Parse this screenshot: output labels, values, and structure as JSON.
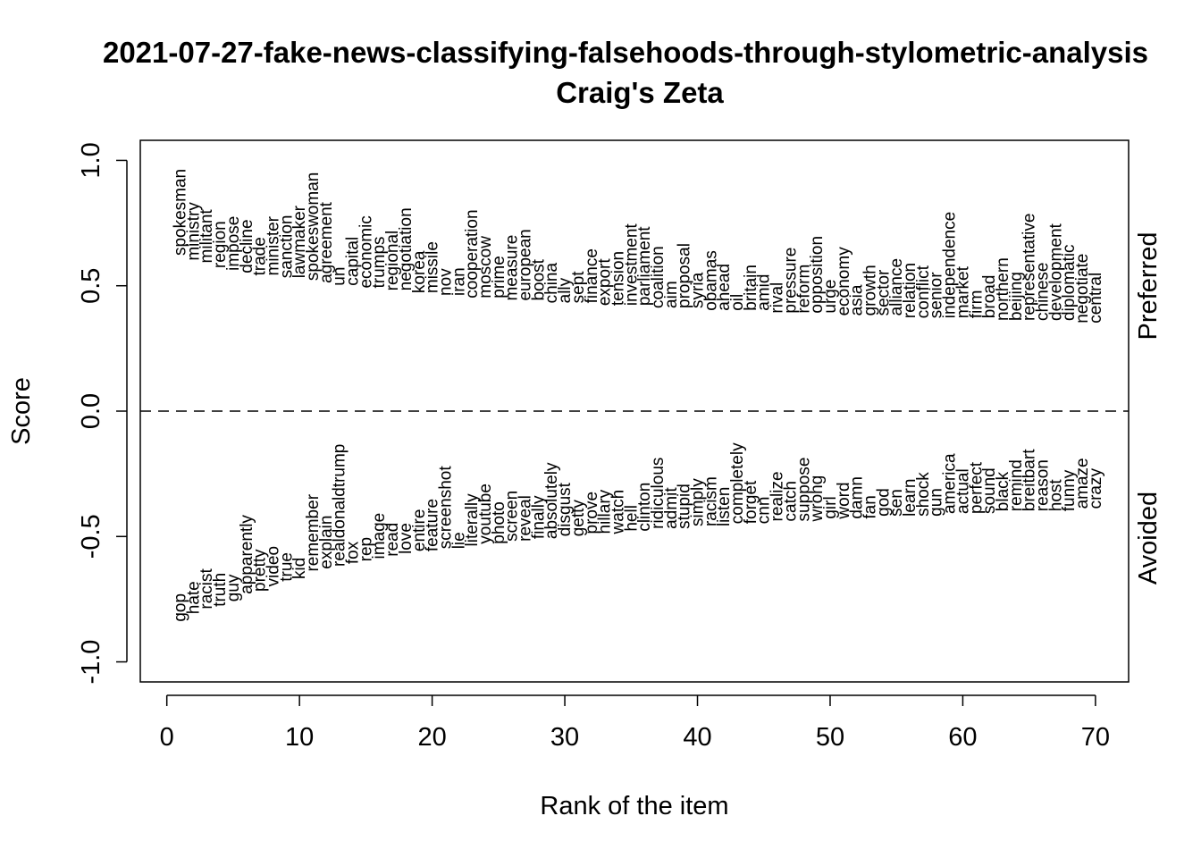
{
  "chart_data": {
    "type": "scatter",
    "title": "2021-07-27-fake-news-classifying-falsehoods-through-stylometric-analysis",
    "subtitle": "Craig's Zeta",
    "xlabel": "Rank of the item",
    "ylabel": "Score",
    "xlim": [
      -2,
      72.5
    ],
    "ylim": [
      -1.08,
      1.08
    ],
    "x_ticks": [
      "0",
      "10",
      "20",
      "30",
      "40",
      "50",
      "60",
      "70"
    ],
    "y_ticks": [
      "-1.0",
      "-0.5",
      "0.0",
      "0.5",
      "1.0"
    ],
    "reference_line": {
      "y": 0,
      "style": "dashed"
    },
    "side_labels": {
      "top": "Preferred",
      "bottom": "Avoided"
    },
    "preferred": {
      "words": [
        "spokesman",
        "ministry",
        "militant",
        "region",
        "impose",
        "decline",
        "trade",
        "minister",
        "sanction",
        "lawmaker",
        "spokeswoman",
        "agreement",
        "un",
        "capital",
        "economic",
        "trumps",
        "regional",
        "negotiation",
        "korea",
        "missile",
        "nov",
        "iran",
        "cooperation",
        "moscow",
        "prime",
        "measure",
        "european",
        "boost",
        "china",
        "ally",
        "sept",
        "finance",
        "export",
        "tension",
        "investment",
        "parliament",
        "coalition",
        "aim",
        "proposal",
        "syria",
        "obamas",
        "ahead",
        "oil",
        "britain",
        "amid",
        "rival",
        "pressure",
        "reform",
        "opposition",
        "urge",
        "economy",
        "asia",
        "growth",
        "sector",
        "alliance",
        "relation",
        "conflict",
        "senior",
        "independence",
        "market",
        "firm",
        "broad",
        "northern",
        "beijing",
        "representative",
        "chinese",
        "development",
        "diplomatic",
        "negotiate",
        "central"
      ],
      "scores": [
        0.62,
        0.6,
        0.59,
        0.57,
        0.56,
        0.55,
        0.54,
        0.54,
        0.53,
        0.53,
        0.52,
        0.51,
        0.5,
        0.5,
        0.49,
        0.49,
        0.48,
        0.48,
        0.47,
        0.47,
        0.46,
        0.46,
        0.45,
        0.45,
        0.45,
        0.44,
        0.44,
        0.44,
        0.43,
        0.43,
        0.43,
        0.43,
        0.42,
        0.42,
        0.42,
        0.42,
        0.41,
        0.41,
        0.41,
        0.41,
        0.4,
        0.4,
        0.4,
        0.4,
        0.4,
        0.39,
        0.39,
        0.39,
        0.39,
        0.39,
        0.38,
        0.38,
        0.38,
        0.38,
        0.38,
        0.37,
        0.37,
        0.37,
        0.37,
        0.37,
        0.37,
        0.37,
        0.36,
        0.36,
        0.36,
        0.36,
        0.36,
        0.36,
        0.35,
        0.35
      ]
    },
    "avoided": {
      "words": [
        "gop",
        "hate",
        "racist",
        "truth",
        "guy",
        "apparently",
        "pretty",
        "video",
        "true",
        "kid",
        "remember",
        "explain",
        "realdonaldtrump",
        "fox",
        "rep",
        "image",
        "read",
        "love",
        "entire",
        "feature",
        "screenshot",
        "lie",
        "literally",
        "youtube",
        "photo",
        "screen",
        "reveal",
        "finally",
        "absolutely",
        "disgust",
        "getty",
        "prove",
        "hillary",
        "watch",
        "hell",
        "clinton",
        "ridiculous",
        "admit",
        "stupid",
        "simply",
        "racism",
        "listen",
        "completely",
        "forget",
        "cnn",
        "realize",
        "catch",
        "suppose",
        "wrong",
        "girl",
        "word",
        "damn",
        "fan",
        "god",
        "sen",
        "learn",
        "shock",
        "gun",
        "america",
        "actual",
        "perfect",
        "sound",
        "black",
        "remind",
        "breitbart",
        "reason",
        "host",
        "funny",
        "amaze",
        "crazy"
      ],
      "scores": [
        -0.84,
        -0.81,
        -0.79,
        -0.78,
        -0.76,
        -0.73,
        -0.72,
        -0.7,
        -0.68,
        -0.67,
        -0.64,
        -0.63,
        -0.62,
        -0.61,
        -0.6,
        -0.59,
        -0.58,
        -0.57,
        -0.56,
        -0.56,
        -0.55,
        -0.55,
        -0.54,
        -0.53,
        -0.53,
        -0.52,
        -0.52,
        -0.51,
        -0.51,
        -0.5,
        -0.5,
        -0.49,
        -0.49,
        -0.49,
        -0.48,
        -0.48,
        -0.47,
        -0.47,
        -0.47,
        -0.46,
        -0.46,
        -0.46,
        -0.45,
        -0.45,
        -0.45,
        -0.44,
        -0.44,
        -0.44,
        -0.44,
        -0.43,
        -0.43,
        -0.43,
        -0.43,
        -0.42,
        -0.42,
        -0.42,
        -0.42,
        -0.42,
        -0.41,
        -0.41,
        -0.41,
        -0.41,
        -0.4,
        -0.4,
        -0.4,
        -0.4,
        -0.4,
        -0.4,
        -0.39,
        -0.39
      ]
    }
  }
}
